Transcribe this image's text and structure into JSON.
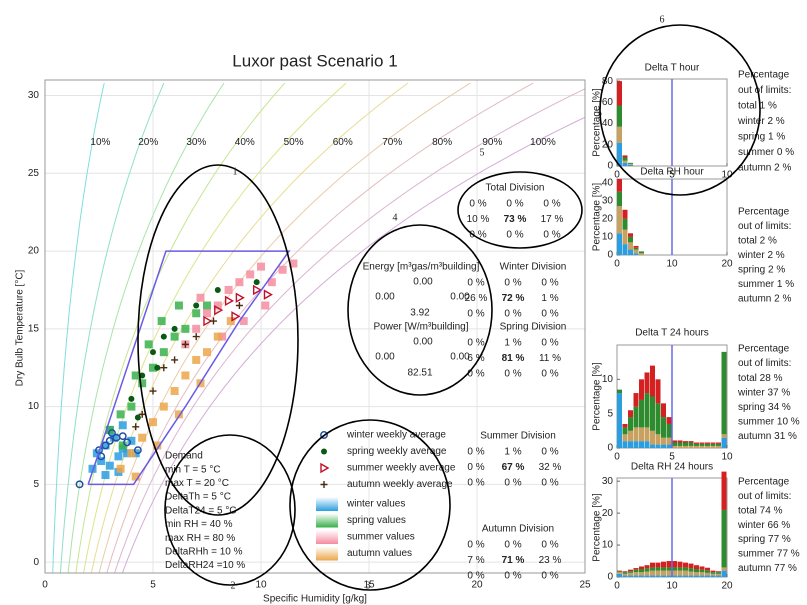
{
  "chart_data": [
    {
      "type": "psychrometric",
      "title": "Luxor past Scenario 1",
      "xlabel": "Specific Humidity [g/kg]",
      "ylabel": "Dry Bulb Temperature [°C]",
      "xlim": [
        0,
        25
      ],
      "ylim": [
        -0.7,
        31
      ],
      "xticks": [
        0,
        5,
        10,
        15,
        20,
        25
      ],
      "yticks": [
        0,
        5,
        10,
        15,
        20,
        25,
        30
      ],
      "grid": true,
      "rh_lines": [
        {
          "value": 10,
          "label": "10%"
        },
        {
          "value": 20,
          "label": "20%"
        },
        {
          "value": 30,
          "label": "30%"
        },
        {
          "value": 40,
          "label": "40%"
        },
        {
          "value": 50,
          "label": "50%"
        },
        {
          "value": 60,
          "label": "60%"
        },
        {
          "value": 70,
          "label": "70%"
        },
        {
          "value": 80,
          "label": "80%"
        },
        {
          "value": 90,
          "label": "90%"
        },
        {
          "value": 100,
          "label": "100%"
        }
      ],
      "rh_colors": [
        "#7fdede",
        "#8fe0c8",
        "#a8e4a8",
        "#c4e690",
        "#dce48c",
        "#e8dc94",
        "#e8cca8",
        "#e4bcc0",
        "#dcb4d0",
        "#d4acd8"
      ],
      "comfort_zone": {
        "color": "#6a5ae6",
        "x": [
          2,
          5.6,
          11.3,
          9,
          6.5,
          4.1,
          2
        ],
        "values": [
          5,
          20,
          20,
          15.5,
          10,
          5,
          5
        ]
      },
      "series": [
        {
          "name": "winter values",
          "marker": "square",
          "color": "#2b9ee0",
          "x": [
            2.2,
            2.6,
            3.0,
            3.4,
            3.8,
            2.8,
            3.2,
            3.6,
            4.0,
            2.4,
            3.0,
            3.6,
            4.2,
            3.4,
            2.8
          ],
          "values": [
            6.0,
            6.5,
            6.2,
            6.8,
            7.0,
            7.5,
            8.0,
            7.3,
            7.8,
            7.0,
            8.5,
            8.8,
            7.0,
            5.8,
            5.6
          ]
        },
        {
          "name": "spring values",
          "marker": "square",
          "color": "#38b04a",
          "x": [
            3.0,
            3.5,
            4.0,
            4.5,
            5.0,
            5.5,
            6.0,
            6.5,
            7.0,
            7.5,
            4.2,
            4.8,
            5.4,
            6.2,
            3.6
          ],
          "values": [
            8.5,
            9.5,
            10.0,
            11.5,
            12.5,
            13.5,
            14.5,
            15.0,
            16.0,
            16.5,
            12.0,
            14.0,
            15.5,
            16.5,
            7.5
          ]
        },
        {
          "name": "summer values",
          "marker": "square",
          "color": "#f58ca0",
          "x": [
            6.5,
            7.0,
            7.5,
            8.0,
            8.5,
            9.0,
            9.5,
            10.0,
            10.5,
            11.0,
            11.5,
            8.2,
            9.2,
            10.2,
            7.2
          ],
          "values": [
            14.0,
            15.0,
            16.0,
            16.5,
            17.5,
            18.0,
            18.5,
            19.0,
            18.0,
            18.8,
            19.2,
            14.5,
            15.5,
            16.5,
            17.0
          ]
        },
        {
          "name": "autumn values",
          "marker": "square",
          "color": "#eca64a",
          "x": [
            3.5,
            4.0,
            4.5,
            5.0,
            5.5,
            6.0,
            6.5,
            7.0,
            7.5,
            8.0,
            4.2,
            5.2,
            6.2,
            7.2,
            8.6
          ],
          "values": [
            6.0,
            7.0,
            8.0,
            9.0,
            10.0,
            11.0,
            12.0,
            13.0,
            13.5,
            14.5,
            5.5,
            7.5,
            9.5,
            11.5,
            15.5
          ]
        },
        {
          "name": "winter weekly average",
          "marker": "circle",
          "color": "#1f4fa0",
          "x": [
            1.6,
            2.5,
            2.8,
            3.0,
            3.3,
            3.6,
            4.3,
            3.8,
            2.6,
            3.1
          ],
          "values": [
            5,
            7.2,
            7.5,
            7.8,
            8,
            8.1,
            7.2,
            7.7,
            6.8,
            8.3
          ]
        },
        {
          "name": "spring weekly average",
          "marker": "dot",
          "color": "#0a5a14",
          "x": [
            4,
            4.5,
            5,
            5.5,
            6,
            7,
            8,
            9.8,
            4.3,
            5.2
          ],
          "values": [
            10.5,
            12,
            13.5,
            14.5,
            15,
            16.5,
            17.5,
            18,
            9.3,
            12.5
          ]
        },
        {
          "name": "summer weekly average",
          "marker": "triangle",
          "color": "#c0102a",
          "x": [
            7.5,
            8,
            8.5,
            9,
            9.8,
            10.3,
            8.8
          ],
          "values": [
            15.5,
            16.2,
            16.8,
            17,
            17.5,
            17.2,
            15.8
          ]
        },
        {
          "name": "autumn weekly average",
          "marker": "plus",
          "color": "#4a2a10",
          "x": [
            4.5,
            5,
            5.5,
            6,
            6.5,
            7,
            7.8,
            9,
            4.2
          ],
          "values": [
            9.5,
            11,
            12.5,
            13,
            14,
            14.5,
            15.5,
            16.5,
            8.7
          ]
        }
      ]
    },
    {
      "type": "histogram",
      "title": "Delta T hour",
      "ylabel": "Percentage [%]",
      "xlim": [
        0,
        10
      ],
      "ylim": [
        0,
        82
      ],
      "xticks": [
        0,
        5,
        10
      ],
      "yticks": [
        0,
        20,
        40,
        60,
        80
      ],
      "limit": 5,
      "limit_color": "#6a6ae6",
      "bins": [
        0,
        0.5,
        1,
        1.5,
        2,
        2.5,
        3,
        3.5,
        4,
        4.5,
        5,
        5.5,
        6,
        6.5,
        7,
        7.5,
        8,
        8.5,
        9,
        9.5,
        10
      ],
      "series": [
        {
          "color": "#2b9ee0",
          "values": [
            22,
            3,
            1,
            0,
            0,
            0,
            0,
            0,
            0,
            0,
            0,
            0,
            0,
            0,
            0,
            0,
            0,
            0,
            0,
            0
          ]
        },
        {
          "color": "#c8a060",
          "values": [
            15,
            2,
            1,
            0,
            0,
            0,
            0,
            0,
            0,
            0,
            0,
            0,
            0,
            0,
            0,
            0,
            0,
            0,
            0,
            0
          ]
        },
        {
          "color": "#2e8b2e",
          "values": [
            20,
            3,
            1,
            0,
            0,
            0,
            0,
            0,
            0,
            0,
            0,
            0,
            0,
            0,
            0,
            0,
            0,
            0,
            0,
            0
          ]
        },
        {
          "color": "#d42020",
          "values": [
            23,
            2,
            0,
            0,
            0,
            0,
            0,
            0,
            0,
            0,
            0,
            0,
            0,
            0,
            0,
            0,
            0,
            0,
            0,
            0
          ]
        }
      ],
      "notes": [
        "Percentage",
        "out of limits:",
        "total  1 %",
        "winter 2 %",
        "spring 1 %",
        "summer 0 %",
        "autumn 2 %"
      ],
      "note_colors": [
        "#222",
        "#222",
        "#222",
        "#2a5fc0",
        "#2a8a2a",
        "#d42020",
        "#8a6a10"
      ]
    },
    {
      "type": "histogram",
      "title": "Delta RH hour",
      "ylabel": "Percentage [%]",
      "xlim": [
        0,
        20
      ],
      "ylim": [
        0,
        42
      ],
      "xticks": [
        0,
        10,
        20
      ],
      "yticks": [
        0,
        10,
        20,
        30,
        40
      ],
      "limit": 10,
      "limit_color": "#6a6ae6",
      "bins": [
        0,
        1,
        2,
        3,
        4,
        5,
        6,
        7,
        8,
        9,
        10,
        11,
        12,
        13,
        14,
        15,
        16,
        17,
        18,
        19,
        20
      ],
      "series": [
        {
          "color": "#2b9ee0",
          "values": [
            12,
            6,
            3,
            1,
            0,
            0,
            0,
            0,
            0,
            0,
            0,
            0,
            0,
            0,
            0,
            0,
            0,
            0,
            0,
            0
          ]
        },
        {
          "color": "#c8a060",
          "values": [
            15,
            8,
            4,
            2,
            1,
            0,
            0,
            0,
            0,
            0,
            0,
            0,
            0,
            0,
            0,
            0,
            0,
            0,
            0,
            0
          ]
        },
        {
          "color": "#2e8b2e",
          "values": [
            8,
            6,
            3,
            1,
            1,
            0,
            0,
            0,
            0,
            0,
            0,
            0,
            0,
            0,
            0,
            0,
            0,
            0,
            0,
            0
          ]
        },
        {
          "color": "#d42020",
          "values": [
            7,
            5,
            2,
            1,
            0,
            0,
            0,
            0,
            0,
            0,
            0,
            0,
            0,
            0,
            0,
            0,
            0,
            0,
            0,
            0
          ]
        }
      ],
      "notes": [
        "Percentage",
        "out of limits:",
        "total  2 %",
        "winter 2 %",
        "spring 2 %",
        "summer 1 %",
        "autumn 2 %"
      ],
      "note_colors": [
        "#222",
        "#222",
        "#222",
        "#2a5fc0",
        "#2a8a2a",
        "#d42020",
        "#8a6a10"
      ]
    },
    {
      "type": "histogram",
      "title": "Delta T 24 hours",
      "ylabel": "Percentage [%]",
      "xlim": [
        0,
        10
      ],
      "ylim": [
        0,
        15
      ],
      "xticks": [
        0,
        5,
        10
      ],
      "yticks": [
        0,
        5,
        10
      ],
      "limit": 5,
      "limit_color": "#6a6ae6",
      "bins": [
        0,
        0.5,
        1,
        1.5,
        2,
        2.5,
        3,
        3.5,
        4,
        4.5,
        5,
        5.5,
        6,
        6.5,
        7,
        7.5,
        8,
        8.5,
        9,
        9.5,
        10
      ],
      "series": [
        {
          "color": "#2b9ee0",
          "values": [
            8,
            1,
            1,
            1,
            1,
            1,
            0.5,
            0.5,
            0.5,
            0.5,
            0,
            0,
            0,
            0,
            0,
            0,
            0,
            0,
            0,
            1.5
          ]
        },
        {
          "color": "#c8a060",
          "values": [
            0,
            1,
            1.5,
            2,
            2,
            2,
            2,
            1.5,
            1,
            1,
            0.3,
            0.3,
            0.3,
            0.3,
            0.3,
            0.3,
            0.3,
            0.3,
            0.3,
            0.5
          ]
        },
        {
          "color": "#2e8b2e",
          "values": [
            0.5,
            1,
            2,
            3,
            4,
            5,
            5,
            4.5,
            3,
            2,
            0.5,
            0.5,
            0.5,
            0.5,
            0.3,
            0.3,
            0.3,
            0.3,
            0.3,
            12
          ]
        },
        {
          "color": "#d42020",
          "values": [
            0,
            0.5,
            1,
            2,
            3,
            3,
            4.5,
            3.5,
            2,
            1,
            0.3,
            0.3,
            0.2,
            0.2,
            0.2,
            0.2,
            0.2,
            0.2,
            0.2,
            0
          ]
        }
      ],
      "notes": [
        "Percentage",
        "out of limits:",
        "total  28 %",
        "winter 37 %",
        "spring 34 %",
        "summer 10 %",
        "autumn 31 %"
      ],
      "note_colors": [
        "#222",
        "#222",
        "#222",
        "#2a5fc0",
        "#2a8a2a",
        "#d42020",
        "#8a6a10"
      ]
    },
    {
      "type": "histogram",
      "title": "Delta RH 24 hours",
      "ylabel": "Percentage [%]",
      "xlim": [
        0,
        20
      ],
      "ylim": [
        0,
        31
      ],
      "xticks": [
        0,
        10,
        20
      ],
      "yticks": [
        0,
        10,
        20,
        30
      ],
      "limit": 10,
      "limit_color": "#6a6ae6",
      "bins": [
        0,
        1,
        2,
        3,
        4,
        5,
        6,
        7,
        8,
        9,
        10,
        11,
        12,
        13,
        14,
        15,
        16,
        17,
        18,
        19,
        20
      ],
      "series": [
        {
          "color": "#2b9ee0",
          "values": [
            1,
            0.5,
            0.5,
            0.5,
            0.5,
            0.5,
            0.5,
            0.5,
            0.5,
            0.5,
            0.5,
            0.5,
            0.5,
            0.5,
            0.5,
            0.5,
            0.5,
            0.5,
            0.5,
            2
          ]
        },
        {
          "color": "#c8a060",
          "values": [
            0.5,
            0.5,
            0.8,
            1,
            1,
            1.2,
            1.5,
            1.5,
            1.5,
            1.5,
            1.5,
            1.5,
            1.5,
            1.2,
            1,
            1,
            0.8,
            0.5,
            0.5,
            1
          ]
        },
        {
          "color": "#2e8b2e",
          "values": [
            0.3,
            0.5,
            0.5,
            0.8,
            1,
            1,
            1,
            1,
            1,
            1,
            1,
            1,
            1,
            1,
            1,
            0.8,
            0.8,
            0.5,
            0.5,
            18
          ]
        },
        {
          "color": "#d42020",
          "values": [
            0.2,
            0.3,
            0.5,
            0.5,
            0.8,
            1,
            1.5,
            1.5,
            1.8,
            2,
            2,
            1.8,
            1.5,
            1.5,
            1.2,
            1,
            0.8,
            0.5,
            0.3,
            12
          ]
        }
      ],
      "notes": [
        "Percentage",
        "out of limits:",
        "total  74 %",
        "winter 66 %",
        "spring 77 %",
        "summer 77 %",
        "autumn 77 %"
      ],
      "note_colors": [
        "#222",
        "#222",
        "#222",
        "#2a5fc0",
        "#2a8a2a",
        "#d42020",
        "#8a6a10"
      ]
    }
  ],
  "annotations": [
    "1",
    "2",
    "3",
    "4",
    "5",
    "6"
  ],
  "demand": [
    "Demand",
    "min T  =  5 °C",
    "max T  = 20 °C",
    "DeltaTh  =  5 °C",
    "DeltaT24 = 5 °C",
    "min RH  =  40 %",
    "max RH  =  80 %",
    "DeltaRHh  = 10 %",
    "DeltaRH24 =10 %"
  ],
  "energy": {
    "title": "Energy [m³gas/m³building]",
    "top": "0.00",
    "left": "0.00",
    "right": "0.00",
    "bottom": "3.92"
  },
  "power": {
    "title": "Power [W/m³building]",
    "top": "0.00",
    "left": "0.00",
    "right": "0.00",
    "bottom": "82.51"
  },
  "divisions": [
    {
      "title": "Total Division",
      "color": "#222",
      "rows": [
        [
          "0 %",
          "0 %",
          "0 %"
        ],
        [
          "10 %",
          "73 %",
          "17 %"
        ],
        [
          "0 %",
          "0 %",
          "0 %"
        ]
      ]
    },
    {
      "title": "Winter Division",
      "color": "#2a4fa0",
      "rows": [
        [
          "0 %",
          "0 %",
          "0 %"
        ],
        [
          "26 %",
          "72 %",
          "1 %"
        ],
        [
          "0 %",
          "0 %",
          "0 %"
        ]
      ]
    },
    {
      "title": "Spring Division",
      "color": "#2a7a2a",
      "rows": [
        [
          "0 %",
          "1 %",
          "0 %"
        ],
        [
          "6 %",
          "81 %",
          "11 %"
        ],
        [
          "0 %",
          "0 %",
          "0 %"
        ]
      ]
    },
    {
      "title": "Summer Division",
      "color": "#c01818",
      "rows": [
        [
          "0 %",
          "1 %",
          "0 %"
        ],
        [
          "0 %",
          "67 %",
          "32 %"
        ],
        [
          "0 %",
          "0 %",
          "0 %"
        ]
      ]
    },
    {
      "title": "Autumn Division",
      "color": "#8a6a10",
      "rows": [
        [
          "0 %",
          "0 %",
          "0 %"
        ],
        [
          "7 %",
          "71 %",
          "23 %"
        ],
        [
          "0 %",
          "0 %",
          "0 %"
        ]
      ]
    }
  ]
}
